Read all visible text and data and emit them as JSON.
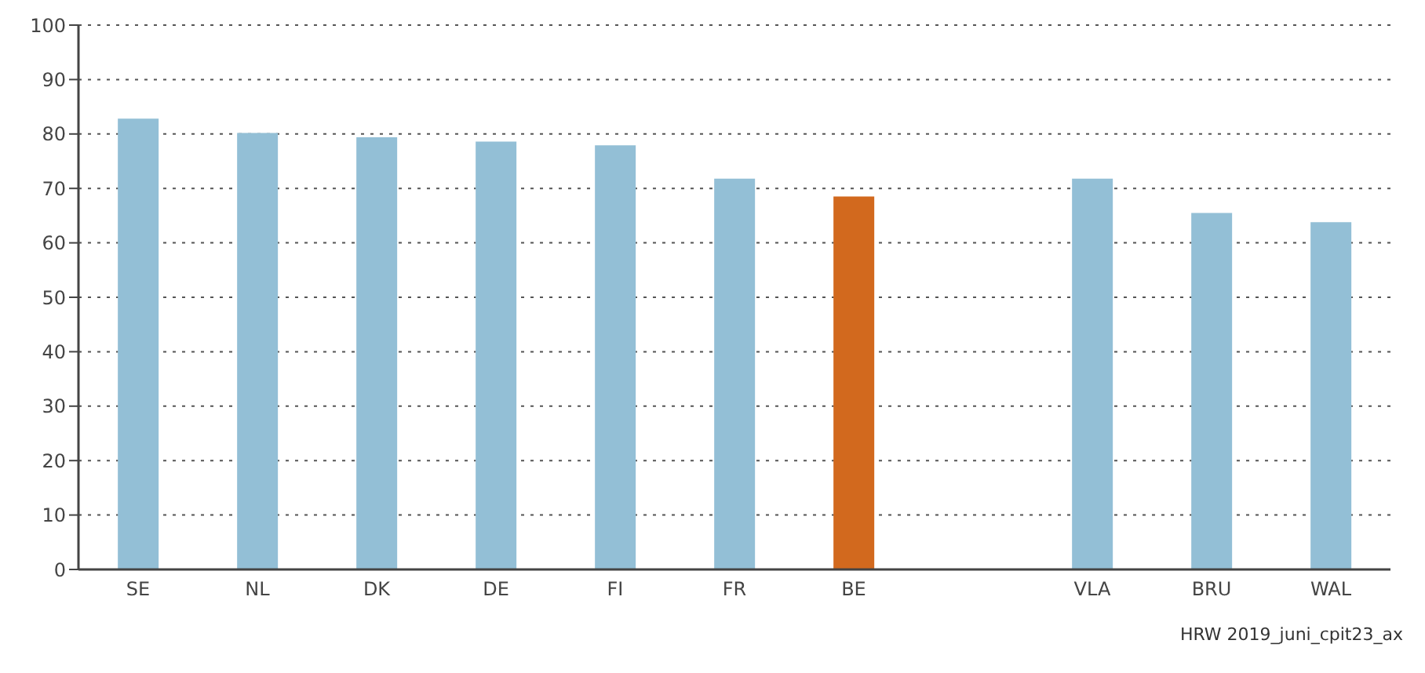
{
  "chart_data": {
    "type": "bar",
    "categories": [
      "SE",
      "NL",
      "DK",
      "DE",
      "FI",
      "FR",
      "BE",
      null,
      "VLA",
      "BRU",
      "WAL"
    ],
    "values": [
      82.8,
      80.2,
      79.4,
      78.6,
      77.9,
      71.8,
      68.5,
      null,
      71.8,
      65.5,
      63.8
    ],
    "colors": [
      "#93bfd6",
      "#93bfd6",
      "#93bfd6",
      "#93bfd6",
      "#93bfd6",
      "#93bfd6",
      "#d2691e",
      null,
      "#93bfd6",
      "#93bfd6",
      "#93bfd6"
    ],
    "ylim": [
      0,
      100
    ],
    "yticks": [
      0,
      10,
      20,
      30,
      40,
      50,
      60,
      70,
      80,
      90,
      100
    ],
    "grid": "y",
    "annotations": [
      "HRW 2019_juni_cpit23_ax"
    ]
  }
}
